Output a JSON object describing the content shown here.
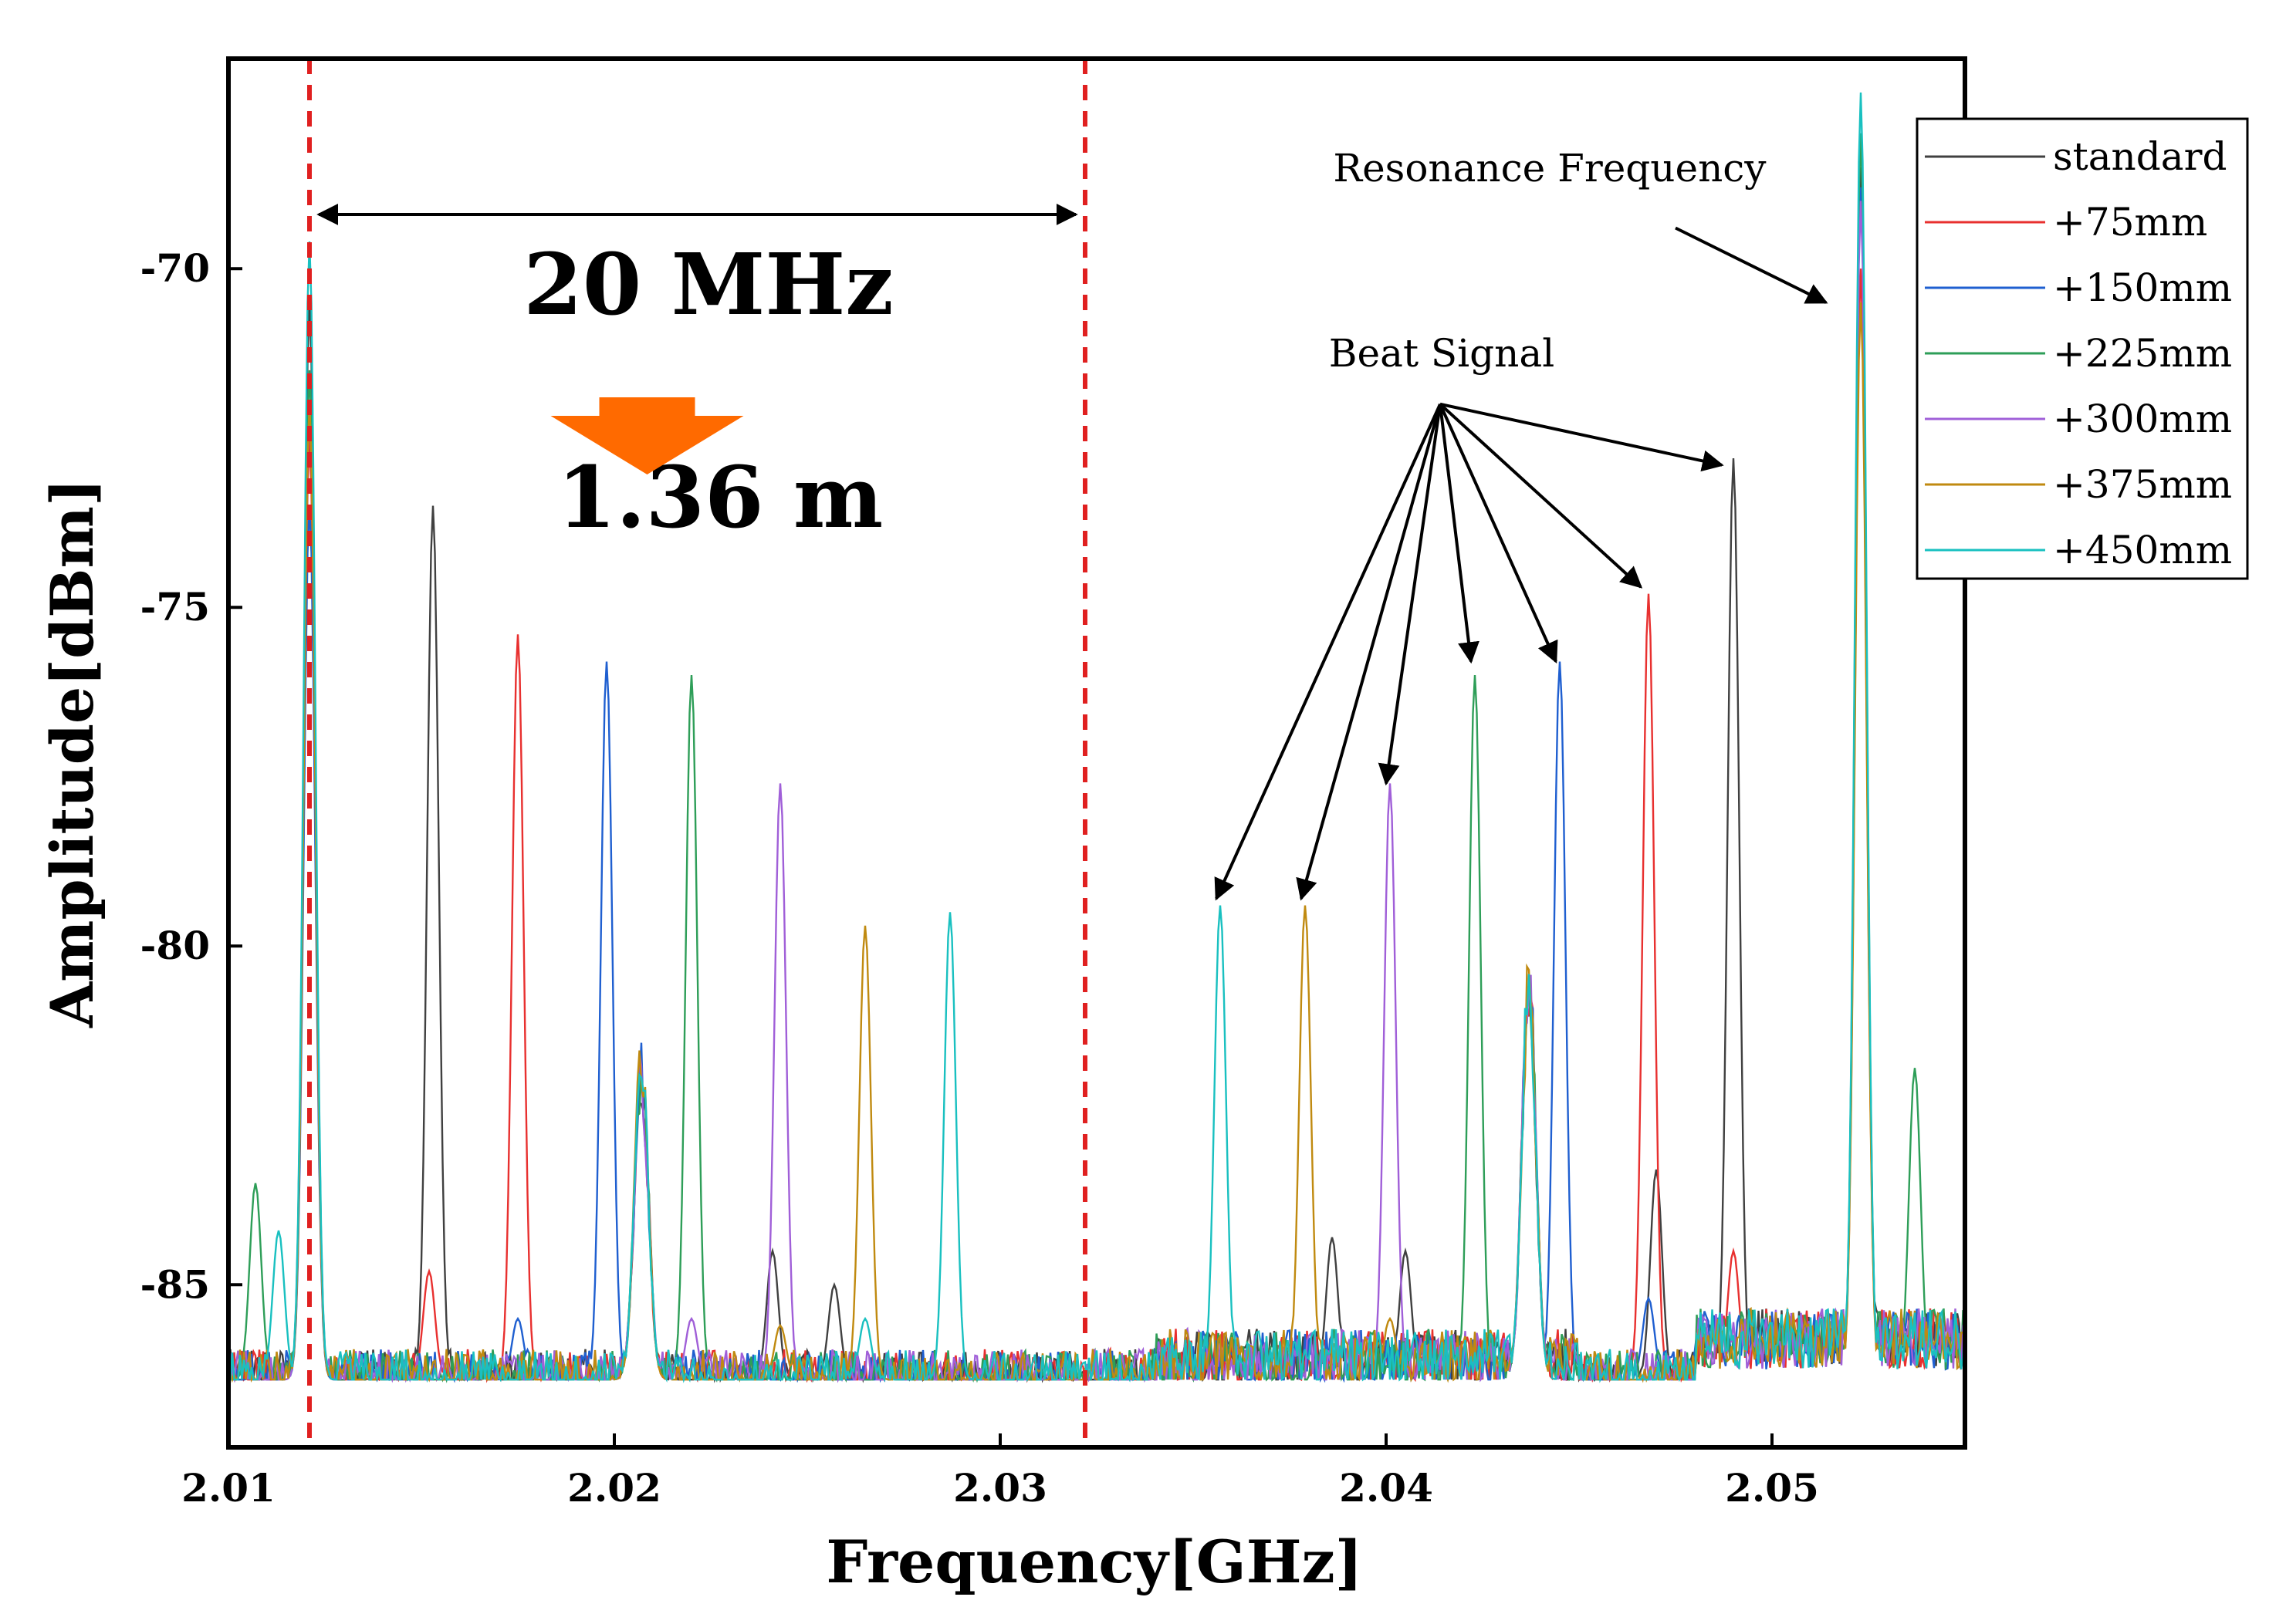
{
  "chart_data": {
    "type": "line",
    "title": "",
    "xlabel": "Frequency[GHz]",
    "ylabel": "Amplitude[dBm]",
    "xlim": [
      2.01,
      2.055
    ],
    "ylim": [
      -87.4,
      -66.9
    ],
    "x_ticks": [
      2.01,
      2.02,
      2.03,
      2.04,
      2.05
    ],
    "x_tick_labels": [
      "2.01",
      "2.02",
      "2.03",
      "2.04",
      "2.05"
    ],
    "y_ticks": [
      -85,
      -80,
      -75,
      -70
    ],
    "y_tick_labels": [
      "-85",
      "-80",
      "-75",
      "-70"
    ],
    "noise_floor_dBm": -86.4,
    "legend_position": "top-right",
    "series": [
      {
        "name": "standard",
        "color": "#404040",
        "peaks": [
          {
            "x": 2.0121,
            "y": -70.5
          },
          {
            "x": 2.0153,
            "y": -73.5
          },
          {
            "x": 2.049,
            "y": -72.8
          },
          {
            "x": 2.0523,
            "y": -68.5
          }
        ],
        "secondary_peaks": [
          {
            "x": 2.0241,
            "y": -84.5
          },
          {
            "x": 2.0257,
            "y": -85.0
          },
          {
            "x": 2.0386,
            "y": -84.3
          },
          {
            "x": 2.0405,
            "y": -84.5
          },
          {
            "x": 2.047,
            "y": -83.3
          }
        ]
      },
      {
        "name": "+75mm",
        "color": "#e8302f",
        "peaks": [
          {
            "x": 2.0121,
            "y": -72.5
          },
          {
            "x": 2.0175,
            "y": -75.4
          },
          {
            "x": 2.0468,
            "y": -74.8
          },
          {
            "x": 2.0523,
            "y": -70.0
          }
        ],
        "secondary_peaks": [
          {
            "x": 2.0152,
            "y": -84.8
          },
          {
            "x": 2.049,
            "y": -84.5
          }
        ]
      },
      {
        "name": "+150mm",
        "color": "#1f5fd0",
        "peaks": [
          {
            "x": 2.0121,
            "y": -73.5
          },
          {
            "x": 2.0198,
            "y": -75.8
          },
          {
            "x": 2.0445,
            "y": -75.8
          },
          {
            "x": 2.0523,
            "y": -68.8
          }
        ],
        "secondary_peaks": [
          {
            "x": 2.0175,
            "y": -85.5
          },
          {
            "x": 2.0468,
            "y": -85.2
          }
        ]
      },
      {
        "name": "+225mm",
        "color": "#2e9e58",
        "peaks": [
          {
            "x": 2.0121,
            "y": -71.5
          },
          {
            "x": 2.022,
            "y": -76.0
          },
          {
            "x": 2.0423,
            "y": -76.0
          },
          {
            "x": 2.0523,
            "y": -68.0
          }
        ],
        "secondary_peaks": [
          {
            "x": 2.0107,
            "y": -83.5
          },
          {
            "x": 2.0537,
            "y": -81.8
          }
        ]
      },
      {
        "name": "+300mm",
        "color": "#a05fd8",
        "peaks": [
          {
            "x": 2.0121,
            "y": -72.0
          },
          {
            "x": 2.0243,
            "y": -77.6
          },
          {
            "x": 2.0401,
            "y": -77.6
          },
          {
            "x": 2.0523,
            "y": -69.0
          }
        ],
        "secondary_peaks": [
          {
            "x": 2.022,
            "y": -85.5
          }
        ]
      },
      {
        "name": "+375mm",
        "color": "#c08a10",
        "peaks": [
          {
            "x": 2.0121,
            "y": -72.0
          },
          {
            "x": 2.0265,
            "y": -79.7
          },
          {
            "x": 2.0379,
            "y": -79.4
          },
          {
            "x": 2.0523,
            "y": -70.5
          }
        ],
        "secondary_peaks": [
          {
            "x": 2.0243,
            "y": -85.6
          },
          {
            "x": 2.0401,
            "y": -85.5
          }
        ]
      },
      {
        "name": "+450mm",
        "color": "#19c0c0",
        "peaks": [
          {
            "x": 2.0121,
            "y": -69.6
          },
          {
            "x": 2.0287,
            "y": -79.5
          },
          {
            "x": 2.0357,
            "y": -79.4
          },
          {
            "x": 2.0523,
            "y": -67.4
          }
        ],
        "secondary_peaks": [
          {
            "x": 2.0113,
            "y": -84.2
          },
          {
            "x": 2.0265,
            "y": -85.5
          }
        ]
      }
    ],
    "common_peaks": [
      {
        "x": 2.0207,
        "y": -81.8
      },
      {
        "x": 2.0437,
        "y": -80.6
      }
    ],
    "reference_lines": {
      "x": [
        2.0121,
        2.0322
      ],
      "color": "#e02020",
      "style": "dashed"
    },
    "annotations": {
      "span_label": "20 MHz",
      "distance_label": "1.36 m",
      "arrow_color": "#ff6a00",
      "beat_signal_label": "Beat Signal",
      "beat_signal_origin": {
        "x": 2.0414,
        "y": -72.0
      },
      "beat_signal_targets": [
        {
          "x": 2.0356,
          "y": -79.3
        },
        {
          "x": 2.0378,
          "y": -79.3
        },
        {
          "x": 2.04,
          "y": -77.6
        },
        {
          "x": 2.0422,
          "y": -75.8
        },
        {
          "x": 2.0444,
          "y": -75.8
        },
        {
          "x": 2.0466,
          "y": -74.7
        },
        {
          "x": 2.0487,
          "y": -72.9
        }
      ],
      "resonance_label": "Resonance Frequency",
      "resonance_arrow": {
        "from": {
          "x": 2.0475,
          "y": -69.4
        },
        "to": {
          "x": 2.0514,
          "y": -70.5
        }
      }
    }
  }
}
